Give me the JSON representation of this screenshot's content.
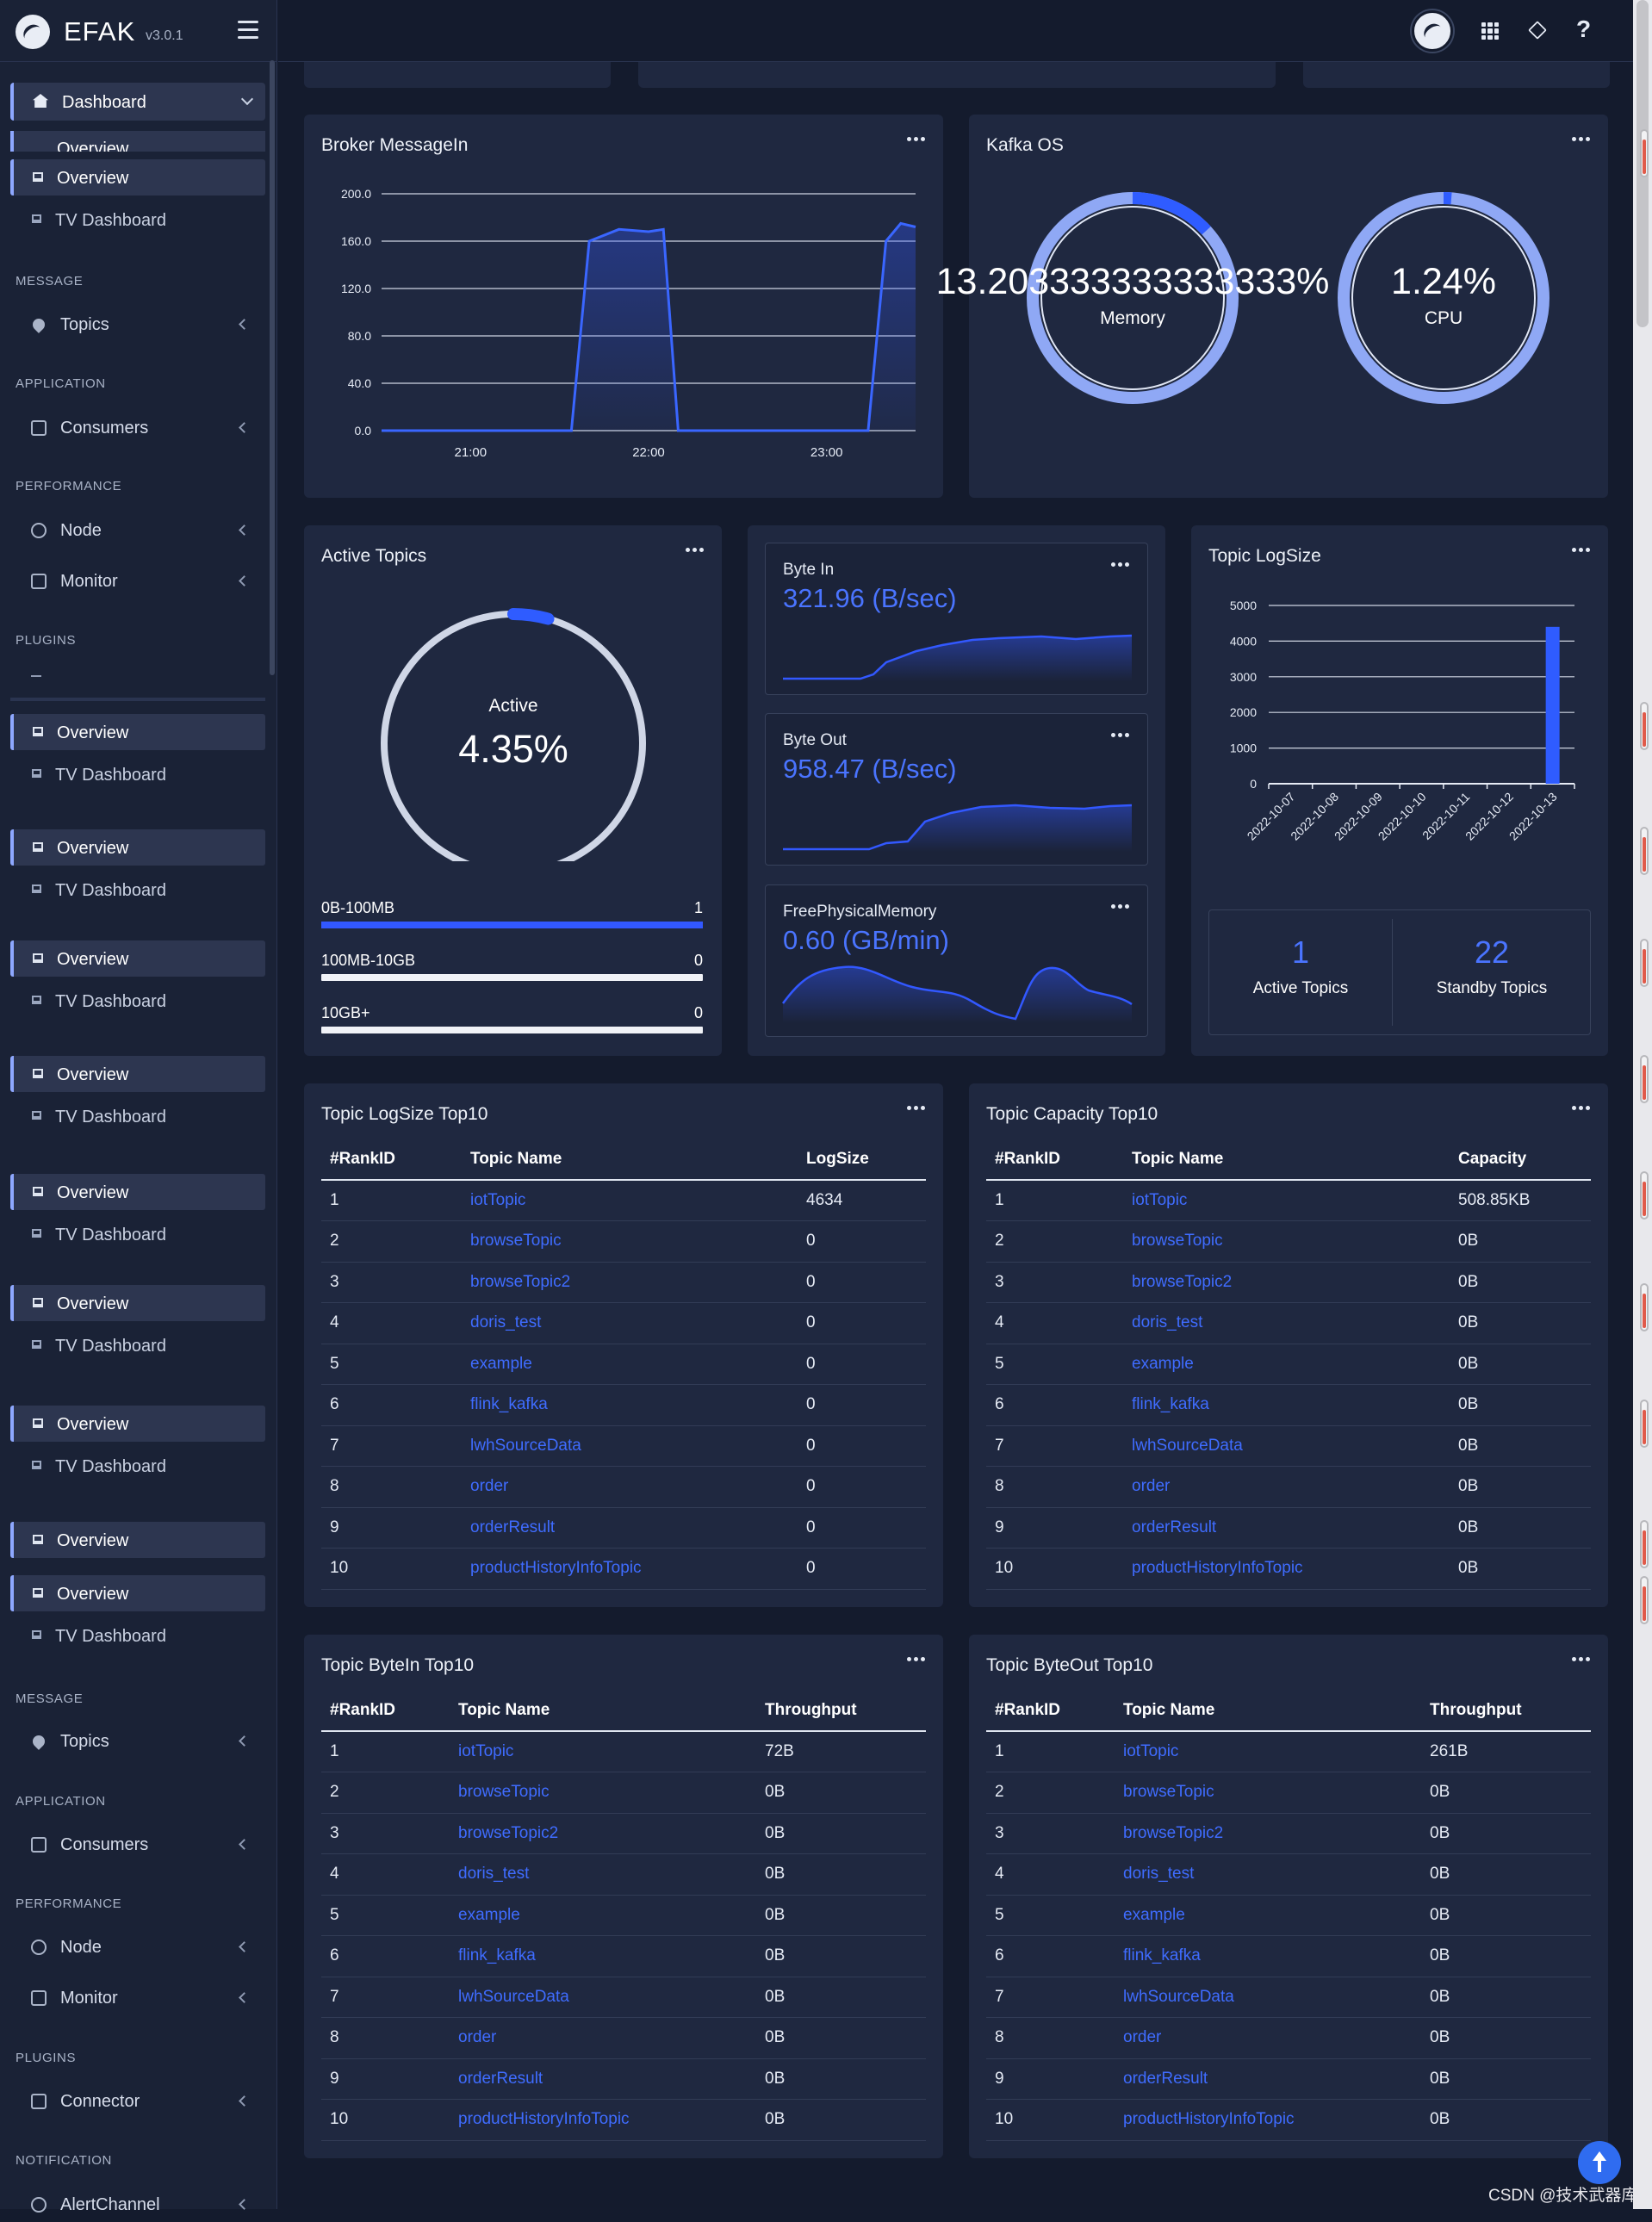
{
  "app": {
    "name": "EFAK",
    "version": "v3.0.1"
  },
  "sidebar": {
    "dashboard_label": "Dashboard",
    "overview_partial": "Overview",
    "overview_label": "Overview",
    "tv_dashboard_label": "TV Dashboard",
    "sections": {
      "message": "MESSAGE",
      "application": "APPLICATION",
      "performance": "PERFORMANCE",
      "plugins": "PLUGINS",
      "notification": "NOTIFICATION"
    },
    "nav": {
      "topics": "Topics",
      "consumers": "Consumers",
      "node": "Node",
      "monitor": "Monitor",
      "connector": "Connector",
      "alert_channel": "AlertChannel"
    }
  },
  "broker_messagein": {
    "title": "Broker MessageIn",
    "chart_data": {
      "type": "area",
      "title": "Broker MessageIn",
      "yticks": [
        "200.0",
        "160.0",
        "120.0",
        "80.0",
        "40.0",
        "0.0"
      ],
      "xticks": [
        "21:00",
        "22:00",
        "23:00"
      ],
      "ylim": [
        0,
        200
      ],
      "x": [
        0,
        10,
        20,
        30,
        40,
        50,
        60,
        64,
        70,
        80,
        90,
        95,
        100,
        110,
        120,
        130,
        140,
        150,
        160,
        164,
        170,
        175,
        180
      ],
      "values": [
        0,
        0,
        0,
        0,
        0,
        0,
        0,
        0,
        160,
        170,
        168,
        170,
        0,
        0,
        0,
        0,
        0,
        0,
        0,
        0,
        160,
        175,
        172
      ]
    }
  },
  "kafka_os": {
    "title": "Kafka OS",
    "memory": {
      "value": "13.203333333333333%",
      "label": "Memory",
      "percent": 13.2
    },
    "cpu": {
      "value": "1.24%",
      "label": "CPU",
      "percent": 1.24
    }
  },
  "active_topics": {
    "title": "Active Topics",
    "gauge_label": "Active",
    "gauge_value": "4.35%",
    "gauge_percent": 4.35,
    "ranges": [
      {
        "label": "0B-100MB",
        "count": "1",
        "fill": 100
      },
      {
        "label": "100MB-10GB",
        "count": "0",
        "fill": 0
      },
      {
        "label": "10GB+",
        "count": "0",
        "fill": 0
      }
    ]
  },
  "byte_in": {
    "title": "Byte In",
    "value": "321.96 (B/sec)"
  },
  "byte_out": {
    "title": "Byte Out",
    "value": "958.47 (B/sec)"
  },
  "free_memory": {
    "title": "FreePhysicalMemory",
    "value": "0.60 (GB/min)"
  },
  "topic_logsize_chart": {
    "title": "Topic LogSize",
    "chart_data": {
      "type": "bar",
      "categories": [
        "2022-10-07",
        "2022-10-08",
        "2022-10-09",
        "2022-10-10",
        "2022-10-11",
        "2022-10-12",
        "2022-10-13"
      ],
      "values": [
        0,
        0,
        0,
        0,
        0,
        0,
        4400
      ],
      "yticks": [
        "5000",
        "4000",
        "3000",
        "2000",
        "1000",
        "0"
      ],
      "ylim": [
        0,
        5000
      ]
    },
    "active": {
      "value": "1",
      "label": "Active Topics"
    },
    "standby": {
      "value": "22",
      "label": "Standby Topics"
    }
  },
  "logsize_top10": {
    "title": "Topic LogSize Top10",
    "headers": [
      "#RankID",
      "Topic Name",
      "LogSize"
    ],
    "rows": [
      [
        "1",
        "iotTopic",
        "4634"
      ],
      [
        "2",
        "browseTopic",
        "0"
      ],
      [
        "3",
        "browseTopic2",
        "0"
      ],
      [
        "4",
        "doris_test",
        "0"
      ],
      [
        "5",
        "example",
        "0"
      ],
      [
        "6",
        "flink_kafka",
        "0"
      ],
      [
        "7",
        "lwhSourceData",
        "0"
      ],
      [
        "8",
        "order",
        "0"
      ],
      [
        "9",
        "orderResult",
        "0"
      ],
      [
        "10",
        "productHistoryInfoTopic",
        "0"
      ]
    ]
  },
  "capacity_top10": {
    "title": "Topic Capacity Top10",
    "headers": [
      "#RankID",
      "Topic Name",
      "Capacity"
    ],
    "rows": [
      [
        "1",
        "iotTopic",
        "508.85KB"
      ],
      [
        "2",
        "browseTopic",
        "0B"
      ],
      [
        "3",
        "browseTopic2",
        "0B"
      ],
      [
        "4",
        "doris_test",
        "0B"
      ],
      [
        "5",
        "example",
        "0B"
      ],
      [
        "6",
        "flink_kafka",
        "0B"
      ],
      [
        "7",
        "lwhSourceData",
        "0B"
      ],
      [
        "8",
        "order",
        "0B"
      ],
      [
        "9",
        "orderResult",
        "0B"
      ],
      [
        "10",
        "productHistoryInfoTopic",
        "0B"
      ]
    ]
  },
  "bytein_top10": {
    "title": "Topic ByteIn Top10",
    "headers": [
      "#RankID",
      "Topic Name",
      "Throughput"
    ],
    "rows": [
      [
        "1",
        "iotTopic",
        "72B"
      ],
      [
        "2",
        "browseTopic",
        "0B"
      ],
      [
        "3",
        "browseTopic2",
        "0B"
      ],
      [
        "4",
        "doris_test",
        "0B"
      ],
      [
        "5",
        "example",
        "0B"
      ],
      [
        "6",
        "flink_kafka",
        "0B"
      ],
      [
        "7",
        "lwhSourceData",
        "0B"
      ],
      [
        "8",
        "order",
        "0B"
      ],
      [
        "9",
        "orderResult",
        "0B"
      ],
      [
        "10",
        "productHistoryInfoTopic",
        "0B"
      ]
    ]
  },
  "byteout_top10": {
    "title": "Topic ByteOut Top10",
    "headers": [
      "#RankID",
      "Topic Name",
      "Throughput"
    ],
    "rows": [
      [
        "1",
        "iotTopic",
        "261B"
      ],
      [
        "2",
        "browseTopic",
        "0B"
      ],
      [
        "3",
        "browseTopic2",
        "0B"
      ],
      [
        "4",
        "doris_test",
        "0B"
      ],
      [
        "5",
        "example",
        "0B"
      ],
      [
        "6",
        "flink_kafka",
        "0B"
      ],
      [
        "7",
        "lwhSourceData",
        "0B"
      ],
      [
        "8",
        "order",
        "0B"
      ],
      [
        "9",
        "orderResult",
        "0B"
      ],
      [
        "10",
        "productHistoryInfoTopic",
        "0B"
      ]
    ]
  },
  "watermark": "CSDN @技术武器库",
  "colors": {
    "accent": "#3258ff",
    "link": "#3f6cff",
    "card": "#1f2840",
    "background": "#141b2d"
  }
}
